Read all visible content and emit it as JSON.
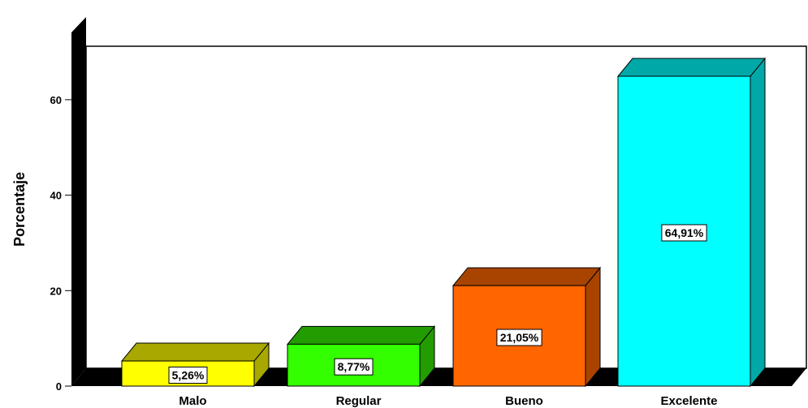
{
  "chart_data": {
    "type": "bar",
    "categories": [
      "Malo",
      "Regular",
      "Bueno",
      "Excelente"
    ],
    "values": [
      5.26,
      8.77,
      21.05,
      64.91
    ],
    "data_labels": [
      "5,26%",
      "8,77%",
      "21,05%",
      "64,91%"
    ],
    "title": "",
    "xlabel": "",
    "ylabel": "Porcentaje",
    "ylim": [
      0,
      75
    ],
    "yticks": [
      0,
      20,
      40,
      60
    ],
    "ytick_labels": [
      "0",
      "20",
      "40",
      "60"
    ],
    "grid": false,
    "style": "3d",
    "colors": {
      "front": [
        "#ffff00",
        "#33ff00",
        "#ff6600",
        "#00ffff"
      ],
      "top": [
        "#a8a800",
        "#229c00",
        "#a84400",
        "#00a8a8"
      ],
      "side": [
        "#a8a800",
        "#229c00",
        "#a84400",
        "#00a8a8"
      ],
      "wall": "#000000",
      "floor": "#000000",
      "background": "#ffffff"
    }
  }
}
